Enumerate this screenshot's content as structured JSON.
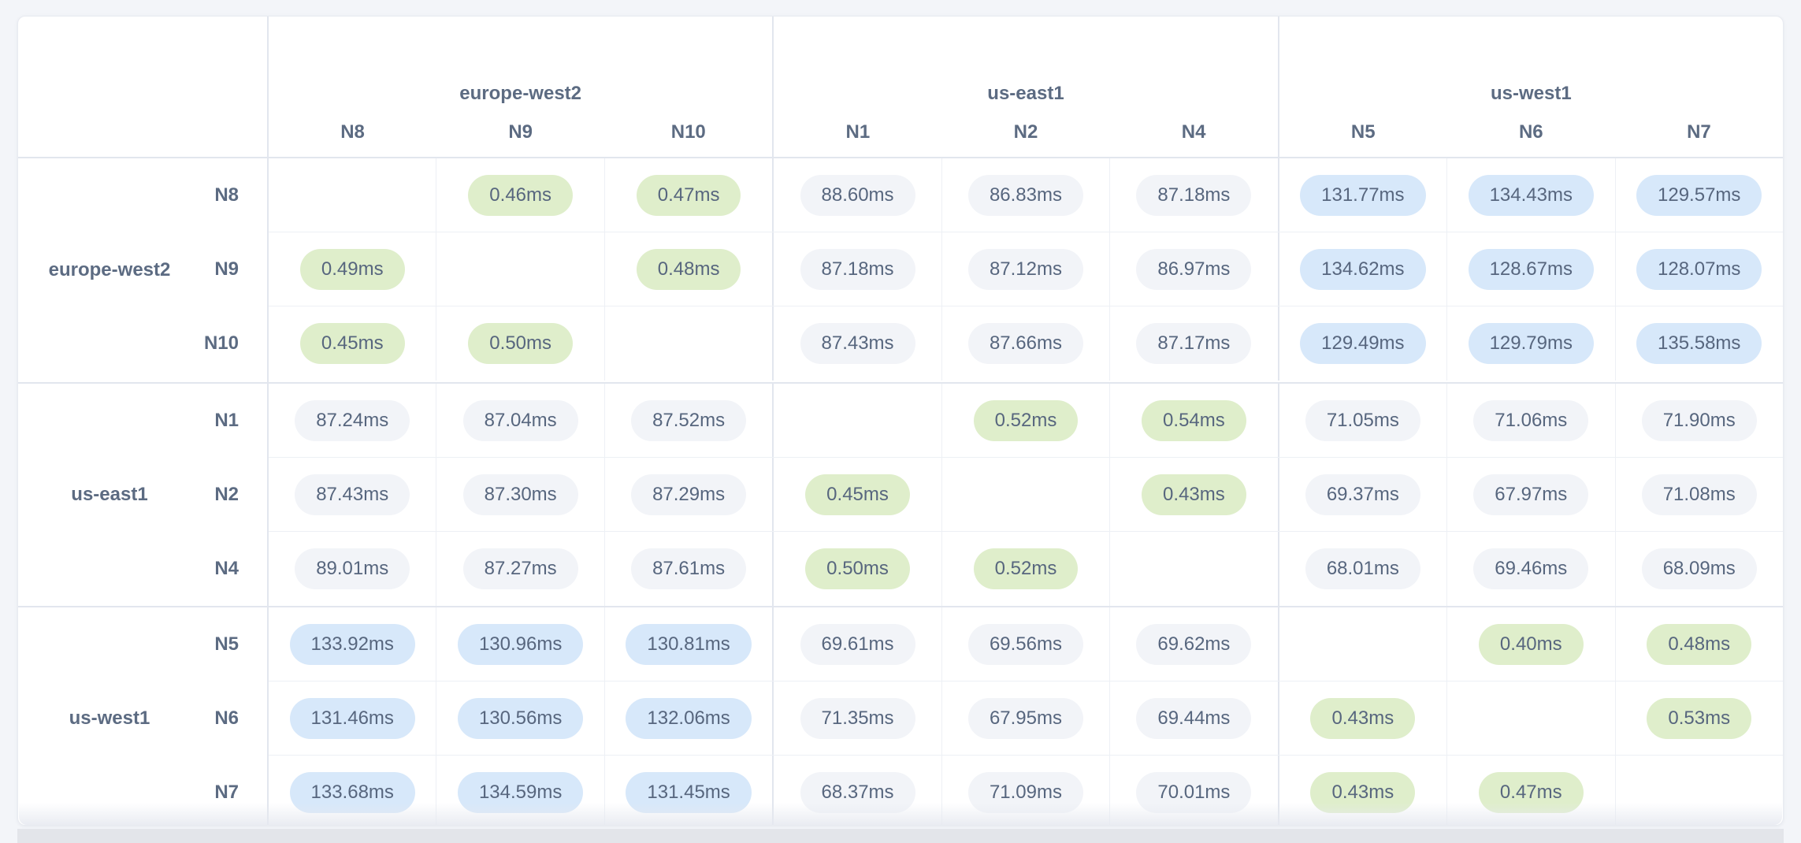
{
  "page": {
    "background": "#f3f5f9",
    "bottom_bar_color": "#e3e5ea"
  },
  "colors": {
    "card_bg": "#ffffff",
    "card_border": "#e8ebf1",
    "grid_strong": "#e2e6ee",
    "grid_light": "#edf0f5",
    "label_text": "#5c6b82",
    "value_text": "#57667e",
    "pill_low_bg": "#dfeecb",
    "pill_mid_bg": "#f2f4f8",
    "pill_high_bg": "#d7e8fa"
  },
  "format": {
    "suffix": "ms",
    "decimals": 2
  },
  "thresholds": {
    "low_below": 10,
    "high_at_least": 100
  },
  "chart_data": {
    "type": "heatmap",
    "title": "",
    "unit": "ms",
    "legend": "none",
    "grid": "on",
    "column_groups": [
      {
        "region": "europe-west2",
        "nodes": [
          "N8",
          "N9",
          "N10"
        ]
      },
      {
        "region": "us-east1",
        "nodes": [
          "N1",
          "N2",
          "N4"
        ]
      },
      {
        "region": "us-west1",
        "nodes": [
          "N5",
          "N6",
          "N7"
        ]
      }
    ],
    "row_groups": [
      {
        "region": "europe-west2",
        "rows": [
          {
            "node": "N8",
            "values": [
              null,
              0.46,
              0.47,
              88.6,
              86.83,
              87.18,
              131.77,
              134.43,
              129.57
            ]
          },
          {
            "node": "N9",
            "values": [
              0.49,
              null,
              0.48,
              87.18,
              87.12,
              86.97,
              134.62,
              128.67,
              128.07
            ]
          },
          {
            "node": "N10",
            "values": [
              0.45,
              0.5,
              null,
              87.43,
              87.66,
              87.17,
              129.49,
              129.79,
              135.58
            ]
          }
        ]
      },
      {
        "region": "us-east1",
        "rows": [
          {
            "node": "N1",
            "values": [
              87.24,
              87.04,
              87.52,
              null,
              0.52,
              0.54,
              71.05,
              71.06,
              71.9
            ]
          },
          {
            "node": "N2",
            "values": [
              87.43,
              87.3,
              87.29,
              0.45,
              null,
              0.43,
              69.37,
              67.97,
              71.08
            ]
          },
          {
            "node": "N4",
            "values": [
              89.01,
              87.27,
              87.61,
              0.5,
              0.52,
              null,
              68.01,
              69.46,
              68.09
            ]
          }
        ]
      },
      {
        "region": "us-west1",
        "rows": [
          {
            "node": "N5",
            "values": [
              133.92,
              130.96,
              130.81,
              69.61,
              69.56,
              69.62,
              null,
              0.4,
              0.48
            ]
          },
          {
            "node": "N6",
            "values": [
              131.46,
              130.56,
              132.06,
              71.35,
              67.95,
              69.44,
              0.43,
              null,
              0.53
            ]
          },
          {
            "node": "N7",
            "values": [
              133.68,
              134.59,
              131.45,
              68.37,
              71.09,
              70.01,
              0.43,
              0.47,
              null
            ]
          }
        ]
      }
    ]
  }
}
